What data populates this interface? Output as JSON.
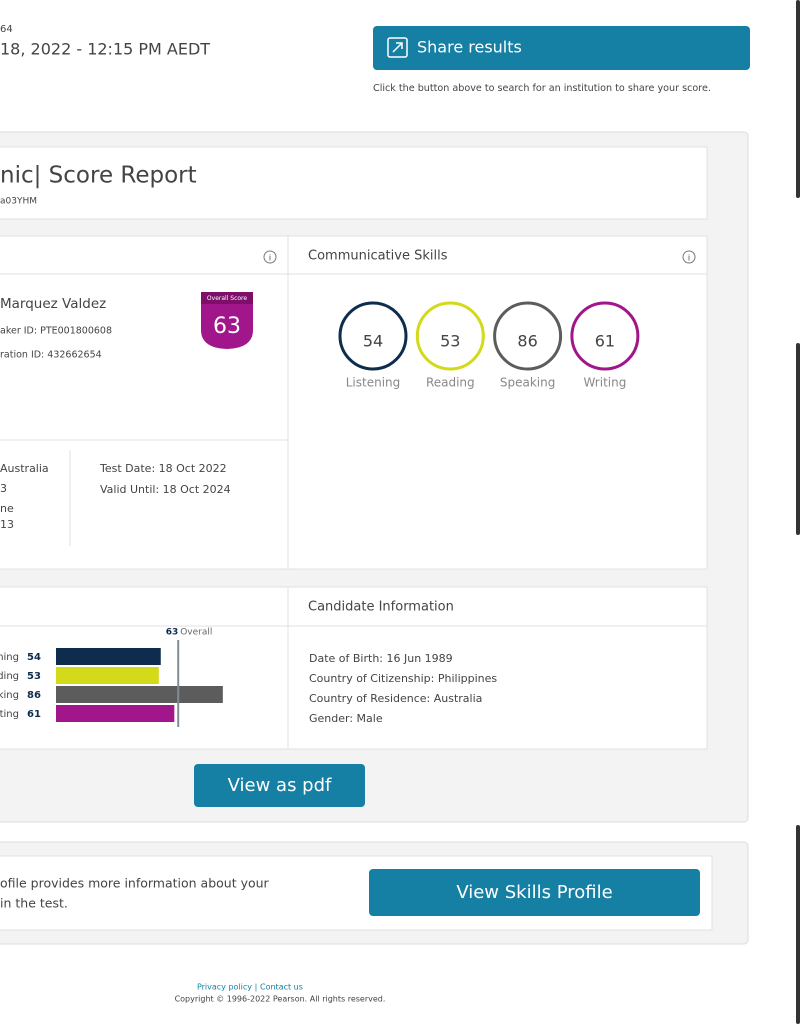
{
  "header": {
    "ref_fragment": "64",
    "datetime": "18, 2022 - 12:15 PM AEDT",
    "share_button": "Share results",
    "share_hint": "Click the button above to search for an institution to share your score."
  },
  "report": {
    "title": "nic| Score Report",
    "code": "a03YHM"
  },
  "candidate": {
    "name": "Marquez Valdez",
    "test_taker_id": "aker ID: PTE001800608",
    "registration_id": "ration ID: 432662654",
    "badge_label": "Overall Score",
    "overall": 63,
    "centre_lines": [
      "Australia",
      "3",
      "ne",
      "13"
    ],
    "test_date": "Test Date: 18 Oct 2022",
    "valid_until": "Valid Until: 18 Oct 2024"
  },
  "skills": {
    "title": "Communicative Skills",
    "items": [
      {
        "name": "Listening",
        "score": 54,
        "color": "#0e2d4d"
      },
      {
        "name": "Reading",
        "score": 53,
        "color": "#d2da1a"
      },
      {
        "name": "Speaking",
        "score": 86,
        "color": "#5c5c5c"
      },
      {
        "name": "Writing",
        "score": 61,
        "color": "#a1168b"
      }
    ]
  },
  "score_chart": {
    "type": "bar",
    "labels": [
      "ning",
      "ding",
      "king",
      "ting"
    ],
    "values": [
      54,
      53,
      86,
      61
    ],
    "colors": [
      "#0e2d4d",
      "#d2da1a",
      "#5c5c5c",
      "#a1168b"
    ],
    "xlim": [
      0,
      90
    ],
    "overall": 63,
    "overall_label": "Overall"
  },
  "candidate_info": {
    "title": "Candidate Information",
    "lines": [
      "Date of Birth: 16 Jun 1989",
      "Country of Citizenship: Philippines",
      "Country of Residence: Australia",
      "Gender: Male"
    ]
  },
  "pdf_button": "View as pdf",
  "skills_profile": {
    "text_lines": [
      "ofile provides more information about your",
      "in the test."
    ],
    "button": "View Skills Profile"
  },
  "footer": {
    "links": [
      "Privacy policy",
      "Contact us"
    ],
    "copyright": "Copyright © 1996-2022 Pearson. All rights reserved."
  }
}
